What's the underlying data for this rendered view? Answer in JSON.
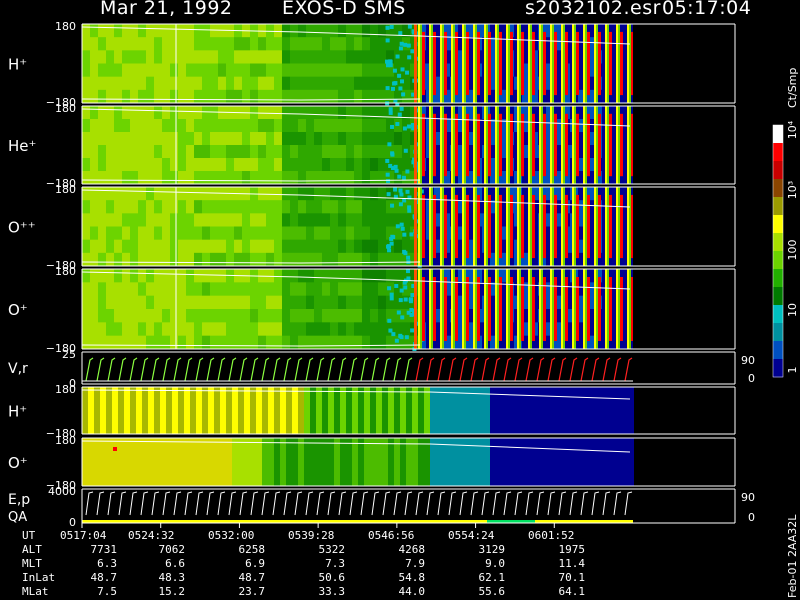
{
  "header": {
    "date": "Mar 21, 1992",
    "instrument": "EXOS-D SMS",
    "file": "s2032102.esr",
    "time": "05:17:04"
  },
  "colorbar": {
    "unit": "Ct/Smp",
    "tick_labels": [
      "10⁴",
      "10³",
      "100",
      "10",
      "1"
    ],
    "colors": [
      "#ffffff",
      "#ff0000",
      "#c80000",
      "#8b4500",
      "#9b9b00",
      "#ffff00",
      "#a8e000",
      "#6cd400",
      "#22b000",
      "#007a00",
      "#00c0c0",
      "#0090a0",
      "#0050c0",
      "#000090"
    ]
  },
  "panels": [
    {
      "label": "H⁺",
      "ytop": "180",
      "ybot": "−180"
    },
    {
      "label": "He⁺",
      "ytop": "180",
      "ybot": "−180"
    },
    {
      "label": "O⁺⁺",
      "ytop": "180",
      "ybot": "−180"
    },
    {
      "label": "O⁺",
      "ytop": "180",
      "ybot": "−180"
    },
    {
      "label": "V,r",
      "ytop": "25",
      "ybot": "0",
      "rtop": "90",
      "rbot": "0"
    },
    {
      "label": "H⁺",
      "ytop": "180",
      "ybot": "−180"
    },
    {
      "label": "O⁺",
      "ytop": "180",
      "ybot": "−180"
    },
    {
      "label": "E,p",
      "label2": "QA",
      "ytop": "4000",
      "ybot": "0",
      "rtop": "90",
      "rbot": "0"
    }
  ],
  "table": {
    "rows": [
      {
        "label": "UT",
        "values": [
          "0517:04",
          "0524:32",
          "0532:00",
          "0539:28",
          "0546:56",
          "0554:24",
          "0601:52"
        ]
      },
      {
        "label": "ALT",
        "values": [
          "7731",
          "7062",
          "6258",
          "5322",
          "4268",
          "3129",
          "1975"
        ]
      },
      {
        "label": "MLT",
        "values": [
          "6.3",
          "6.6",
          "6.9",
          "7.3",
          "7.9",
          "9.0",
          "11.4"
        ]
      },
      {
        "label": "InLat",
        "values": [
          "48.7",
          "48.3",
          "48.7",
          "50.6",
          "54.8",
          "62.1",
          "70.1"
        ]
      },
      {
        "label": "MLat",
        "values": [
          "7.5",
          "15.2",
          "23.7",
          "33.3",
          "44.0",
          "55.6",
          "64.1"
        ]
      }
    ]
  },
  "side_text": "Feb-01 2AA32L",
  "chart_data": {
    "type": "heatmap",
    "x_axis": "UT",
    "x_ticks": [
      "0517:04",
      "0524:32",
      "0532:00",
      "0539:28",
      "0546:56",
      "0554:24",
      "0601:52"
    ],
    "panel_labels": [
      "H⁺",
      "He⁺",
      "O⁺⁺",
      "O⁺",
      "V,r",
      "H⁺",
      "O⁺",
      "E,p"
    ],
    "y_range_angle": [
      -180,
      180
    ],
    "y_range_velocity": [
      0,
      25
    ],
    "y_range_energy": [
      0,
      4000
    ],
    "colorbar_range": [
      1,
      10000
    ],
    "colorbar_scale": "log",
    "legend_placement": "right"
  }
}
